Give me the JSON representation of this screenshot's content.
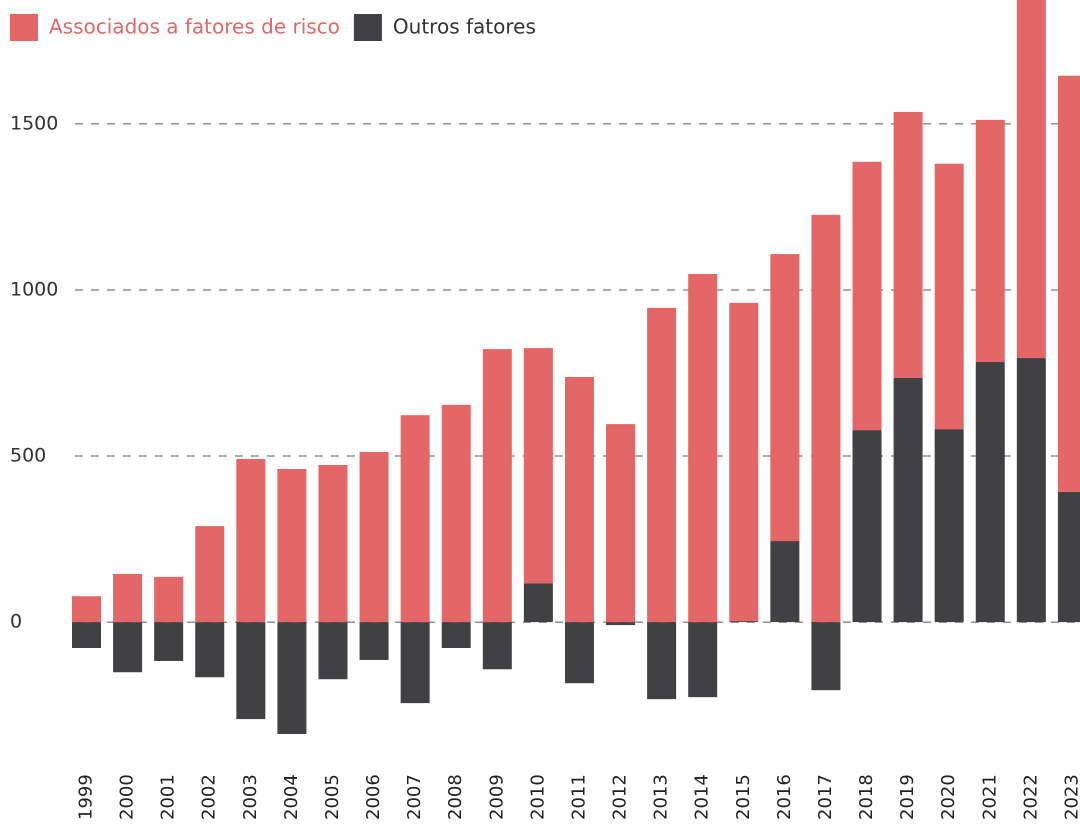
{
  "chart_data": {
    "type": "bar",
    "stacked": true,
    "categories": [
      "1999",
      "2000",
      "2001",
      "2002",
      "2003",
      "2004",
      "2005",
      "2006",
      "2007",
      "2008",
      "2009",
      "2010",
      "2011",
      "2012",
      "2013",
      "2014",
      "2015",
      "2016",
      "2017",
      "2018",
      "2019",
      "2020",
      "2021",
      "2022",
      "2023"
    ],
    "series": [
      {
        "name": "Associados a fatores de risco",
        "color": "#e46666",
        "values": [
          78,
          145,
          136,
          289,
          491,
          461,
          473,
          512,
          623,
          654,
          822,
          708,
          738,
          596,
          946,
          1048,
          958,
          864,
          1226,
          808,
          801,
          799,
          729,
          1105,
          1253
        ]
      },
      {
        "name": "Outros fatores",
        "color": "#414042",
        "values": [
          -78,
          -151,
          -117,
          -166,
          -292,
          -337,
          -172,
          -114,
          -244,
          -78,
          -142,
          117,
          -184,
          -9,
          -232,
          -226,
          3,
          244,
          -205,
          578,
          735,
          581,
          783,
          795,
          392
        ]
      }
    ],
    "ylim": [
      -355,
      1873
    ],
    "yticks": [
      0,
      500,
      1000,
      1500
    ],
    "grid": true
  }
}
